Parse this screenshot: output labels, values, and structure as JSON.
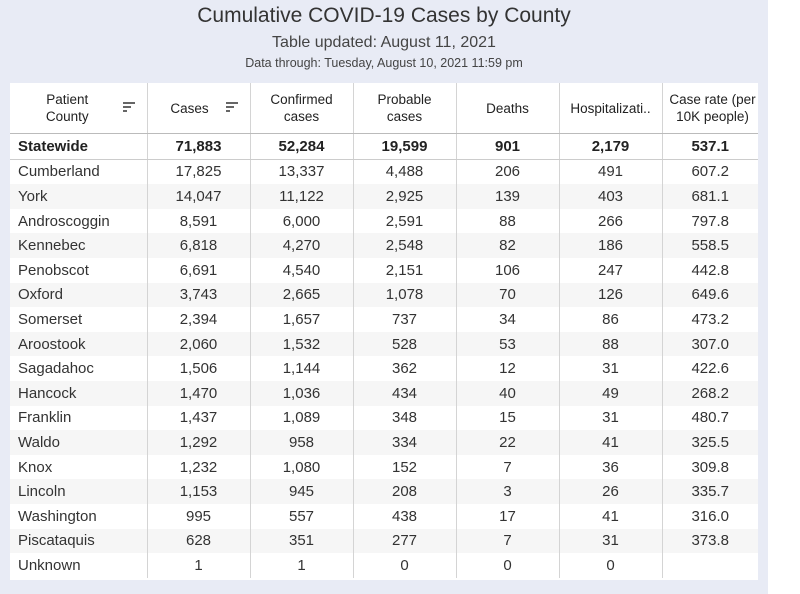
{
  "header": {
    "title": "Cumulative COVID-19 Cases by County",
    "updated": "Table updated: August 11, 2021",
    "data_through": "Data through: Tuesday, August 10, 2021 11:59 pm"
  },
  "columns": {
    "county": "Patient County",
    "cases": "Cases",
    "confirmed": "Confirmed cases",
    "probable": "Probable cases",
    "deaths": "Deaths",
    "hosp": "Hospitalizati..",
    "rate": "Case rate (per 10K people)"
  },
  "icons": {
    "sort": "sort-icon"
  },
  "rows": [
    {
      "county": "Statewide",
      "cases": "71,883",
      "confirmed": "52,284",
      "probable": "19,599",
      "deaths": "901",
      "hosp": "2,179",
      "rate": "537.1"
    },
    {
      "county": "Cumberland",
      "cases": "17,825",
      "confirmed": "13,337",
      "probable": "4,488",
      "deaths": "206",
      "hosp": "491",
      "rate": "607.2"
    },
    {
      "county": "York",
      "cases": "14,047",
      "confirmed": "11,122",
      "probable": "2,925",
      "deaths": "139",
      "hosp": "403",
      "rate": "681.1"
    },
    {
      "county": "Androscoggin",
      "cases": "8,591",
      "confirmed": "6,000",
      "probable": "2,591",
      "deaths": "88",
      "hosp": "266",
      "rate": "797.8"
    },
    {
      "county": "Kennebec",
      "cases": "6,818",
      "confirmed": "4,270",
      "probable": "2,548",
      "deaths": "82",
      "hosp": "186",
      "rate": "558.5"
    },
    {
      "county": "Penobscot",
      "cases": "6,691",
      "confirmed": "4,540",
      "probable": "2,151",
      "deaths": "106",
      "hosp": "247",
      "rate": "442.8"
    },
    {
      "county": "Oxford",
      "cases": "3,743",
      "confirmed": "2,665",
      "probable": "1,078",
      "deaths": "70",
      "hosp": "126",
      "rate": "649.6"
    },
    {
      "county": "Somerset",
      "cases": "2,394",
      "confirmed": "1,657",
      "probable": "737",
      "deaths": "34",
      "hosp": "86",
      "rate": "473.2"
    },
    {
      "county": "Aroostook",
      "cases": "2,060",
      "confirmed": "1,532",
      "probable": "528",
      "deaths": "53",
      "hosp": "88",
      "rate": "307.0"
    },
    {
      "county": "Sagadahoc",
      "cases": "1,506",
      "confirmed": "1,144",
      "probable": "362",
      "deaths": "12",
      "hosp": "31",
      "rate": "422.6"
    },
    {
      "county": "Hancock",
      "cases": "1,470",
      "confirmed": "1,036",
      "probable": "434",
      "deaths": "40",
      "hosp": "49",
      "rate": "268.2"
    },
    {
      "county": "Franklin",
      "cases": "1,437",
      "confirmed": "1,089",
      "probable": "348",
      "deaths": "15",
      "hosp": "31",
      "rate": "480.7"
    },
    {
      "county": "Waldo",
      "cases": "1,292",
      "confirmed": "958",
      "probable": "334",
      "deaths": "22",
      "hosp": "41",
      "rate": "325.5"
    },
    {
      "county": "Knox",
      "cases": "1,232",
      "confirmed": "1,080",
      "probable": "152",
      "deaths": "7",
      "hosp": "36",
      "rate": "309.8"
    },
    {
      "county": "Lincoln",
      "cases": "1,153",
      "confirmed": "945",
      "probable": "208",
      "deaths": "3",
      "hosp": "26",
      "rate": "335.7"
    },
    {
      "county": "Washington",
      "cases": "995",
      "confirmed": "557",
      "probable": "438",
      "deaths": "17",
      "hosp": "41",
      "rate": "316.0"
    },
    {
      "county": "Piscataquis",
      "cases": "628",
      "confirmed": "351",
      "probable": "277",
      "deaths": "7",
      "hosp": "31",
      "rate": "373.8"
    },
    {
      "county": "Unknown",
      "cases": "1",
      "confirmed": "1",
      "probable": "0",
      "deaths": "0",
      "hosp": "0",
      "rate": ""
    }
  ]
}
